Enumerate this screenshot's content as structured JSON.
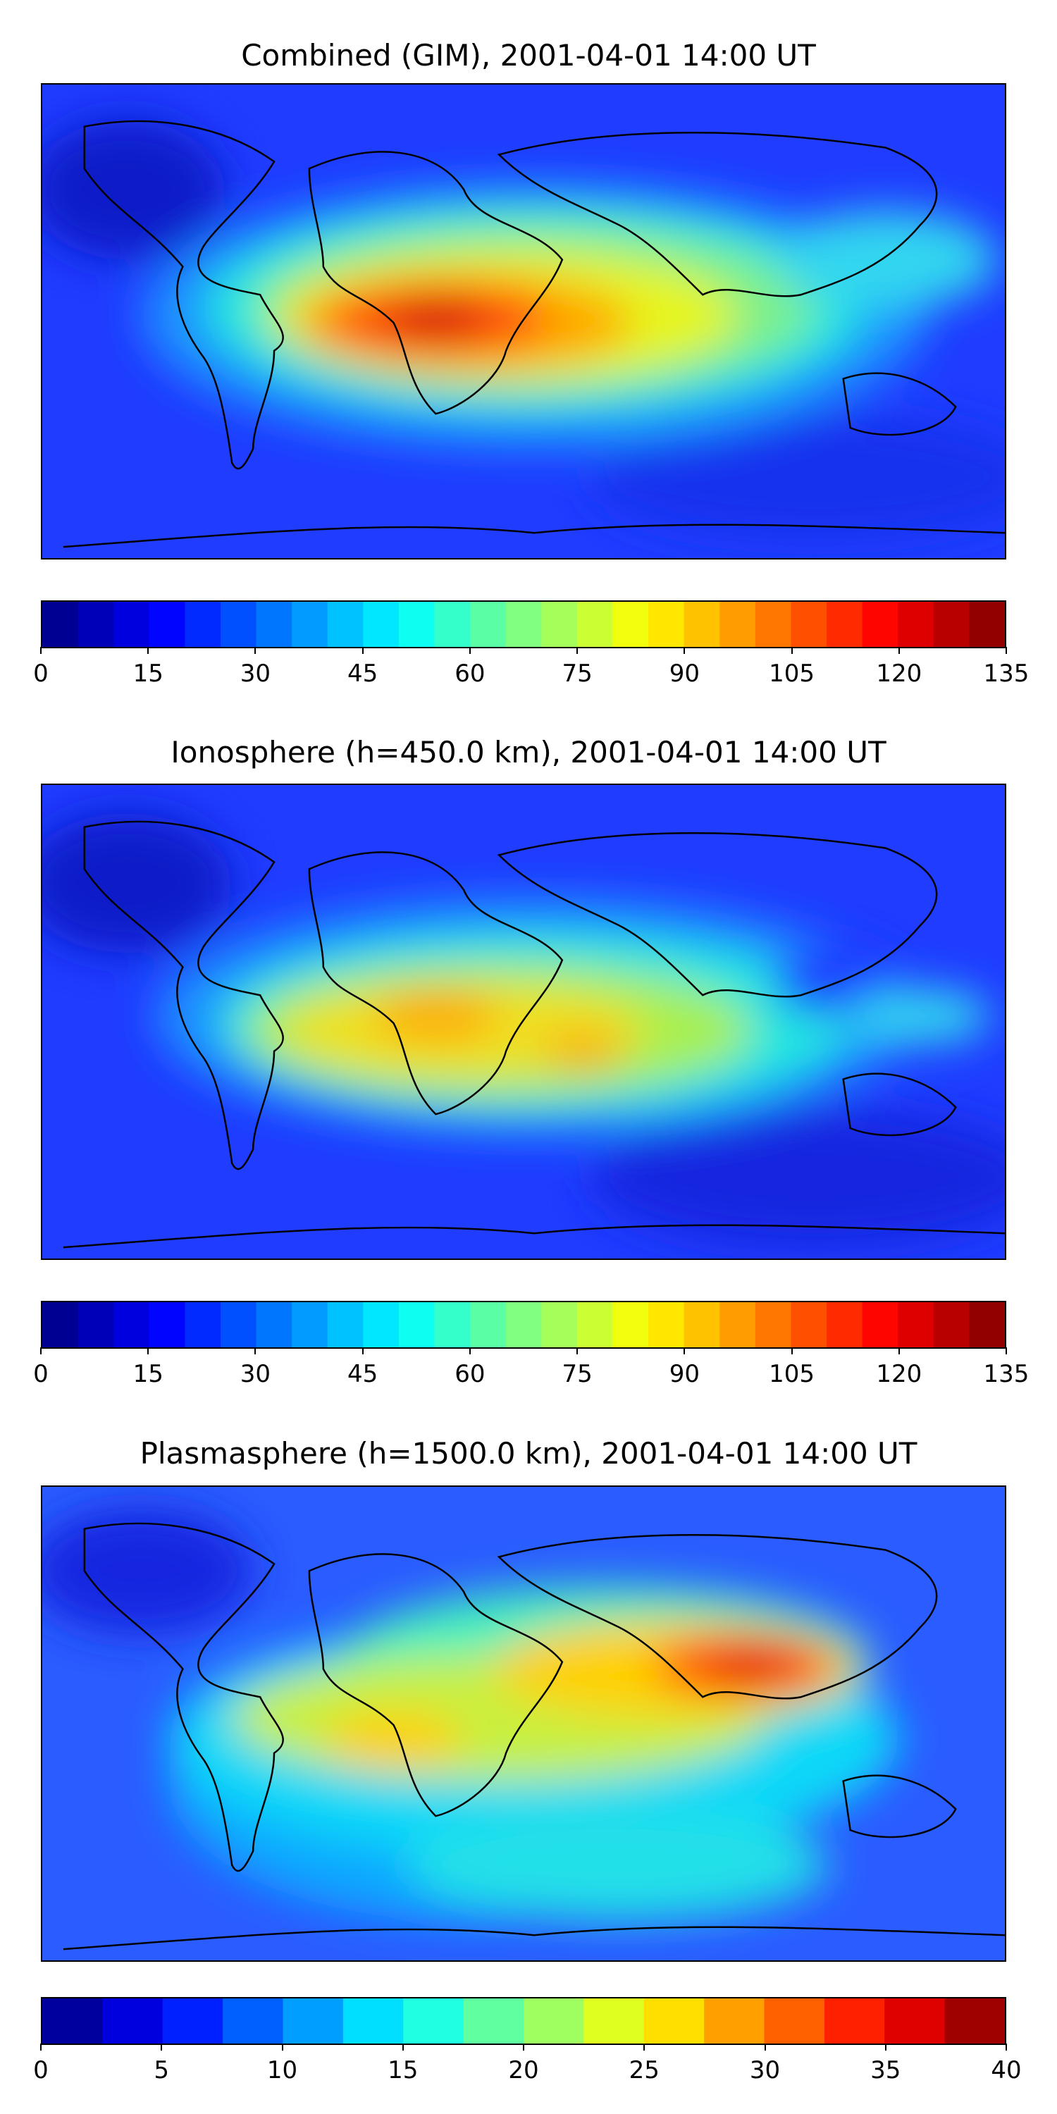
{
  "panels": [
    {
      "title": "Combined (GIM), 2001-04-01 14:00 UT",
      "colorbar": {
        "min": 0,
        "max": 135,
        "levels": 27,
        "ticks": [
          "0",
          "15",
          "30",
          "45",
          "60",
          "75",
          "90",
          "105",
          "120",
          "135"
        ]
      }
    },
    {
      "title": "Ionosphere  (h=450.0 km), 2001-04-01 14:00 UT",
      "colorbar": {
        "min": 0,
        "max": 135,
        "levels": 27,
        "ticks": [
          "0",
          "15",
          "30",
          "45",
          "60",
          "75",
          "90",
          "105",
          "120",
          "135"
        ]
      }
    },
    {
      "title": "Plasmasphere (h=1500.0 km), 2001-04-01 14:00 UT",
      "colorbar": {
        "min": 0,
        "max": 40,
        "levels": 16,
        "ticks": [
          "0",
          "5",
          "10",
          "15",
          "20",
          "25",
          "30",
          "35",
          "40"
        ]
      }
    }
  ],
  "colormap": "jet"
}
